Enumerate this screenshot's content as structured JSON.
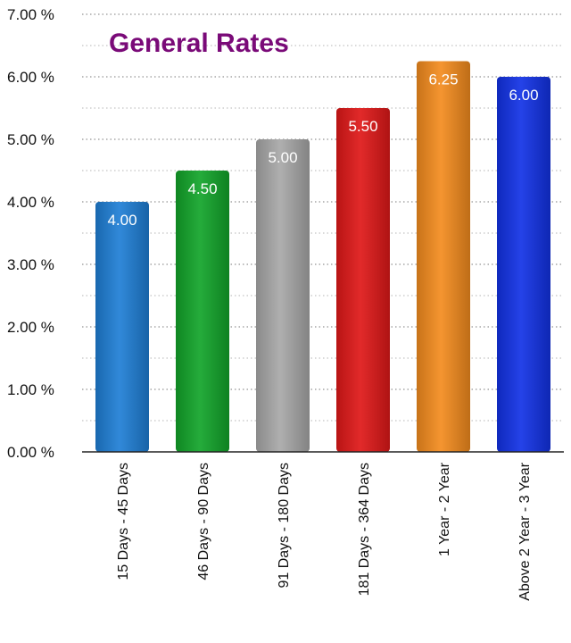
{
  "chart_data": {
    "type": "bar",
    "title": "General Rates",
    "title_color": "#7a0a78",
    "categories": [
      "15 Days - 45 Days",
      "46 Days - 90 Days",
      "91 Days - 180 Days",
      "181 Days - 364 Days",
      "1 Year - 2 Year",
      "Above 2 Year - 3 Year"
    ],
    "values": [
      4.0,
      4.5,
      5.0,
      5.5,
      6.25,
      6.0
    ],
    "data_labels": [
      "4.00",
      "4.50",
      "5.00",
      "5.50",
      "6.25",
      "6.00"
    ],
    "bar_colors": [
      "#1f7fd6",
      "#12a52a",
      "#a8a8a8",
      "#e01818",
      "#f48c1e",
      "#1232e6"
    ],
    "ylim": [
      0,
      7
    ],
    "yticks": [
      {
        "value": 0,
        "label": "0.00 %"
      },
      {
        "value": 1,
        "label": "1.00 %"
      },
      {
        "value": 2,
        "label": "2.00 %"
      },
      {
        "value": 3,
        "label": "3.00 %"
      },
      {
        "value": 4,
        "label": "4.00 %"
      },
      {
        "value": 5,
        "label": "5.00 %"
      },
      {
        "value": 6,
        "label": "6.00 %"
      },
      {
        "value": 7,
        "label": "7.00 %"
      }
    ],
    "minor_grid_step": 0.5,
    "grid": true,
    "grid_style": "dotted",
    "xlabel": "",
    "ylabel": ""
  }
}
